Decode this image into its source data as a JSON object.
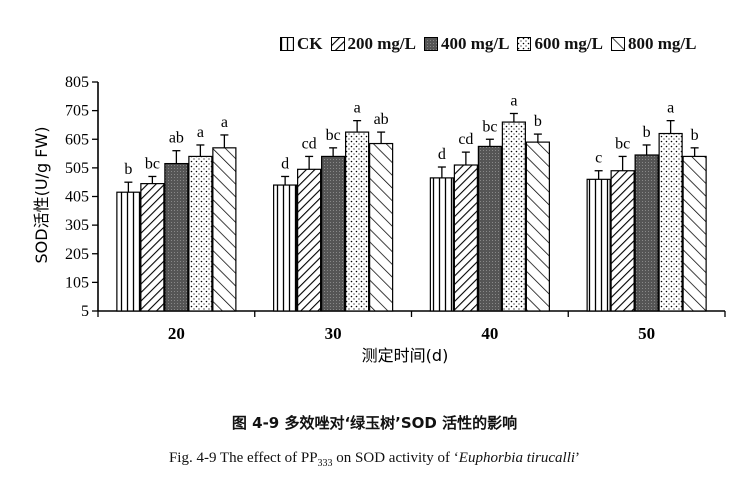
{
  "chart_data": {
    "type": "bar",
    "categories": [
      "20",
      "30",
      "40",
      "50"
    ],
    "xlabel": "测定时间(d)",
    "ylabel": "SOD活性(U/g FW)",
    "ylim": [
      5,
      805
    ],
    "yticks": [
      "805",
      "705",
      "605",
      "505",
      "405",
      "305",
      "205",
      "105",
      "5"
    ],
    "legend_position": "top-right",
    "series": [
      {
        "name": "CK",
        "values": [
          420,
          445,
          470,
          465
        ],
        "errors": [
          35,
          30,
          38,
          30
        ],
        "letters": [
          "b",
          "d",
          "d",
          "c"
        ]
      },
      {
        "name": "200 mg/L",
        "values": [
          450,
          500,
          515,
          495
        ],
        "errors": [
          25,
          45,
          45,
          50
        ],
        "letters": [
          "bc",
          "cd",
          "cd",
          "bc"
        ]
      },
      {
        "name": "400 mg/L",
        "values": [
          520,
          545,
          580,
          550
        ],
        "errors": [
          45,
          30,
          25,
          35
        ],
        "letters": [
          "ab",
          "bc",
          "bc",
          "b"
        ]
      },
      {
        "name": "600 mg/L",
        "values": [
          545,
          630,
          665,
          625
        ],
        "errors": [
          40,
          40,
          30,
          45
        ],
        "letters": [
          "a",
          "a",
          "a",
          "a"
        ]
      },
      {
        "name": "800 mg/L",
        "values": [
          575,
          590,
          595,
          545
        ],
        "errors": [
          45,
          40,
          28,
          30
        ],
        "letters": [
          "a",
          "ab",
          "b",
          "b"
        ]
      }
    ]
  },
  "captions": {
    "chinese": "图 4-9 多效唑对‘绿玉树’SOD 活性的影响",
    "english_prefix": "Fig. 4-9 The effect of PP",
    "english_sub": "333",
    "english_mid": " on SOD activity of ‘",
    "english_species": "Euphorbia tirucalli",
    "english_suffix": "’"
  }
}
